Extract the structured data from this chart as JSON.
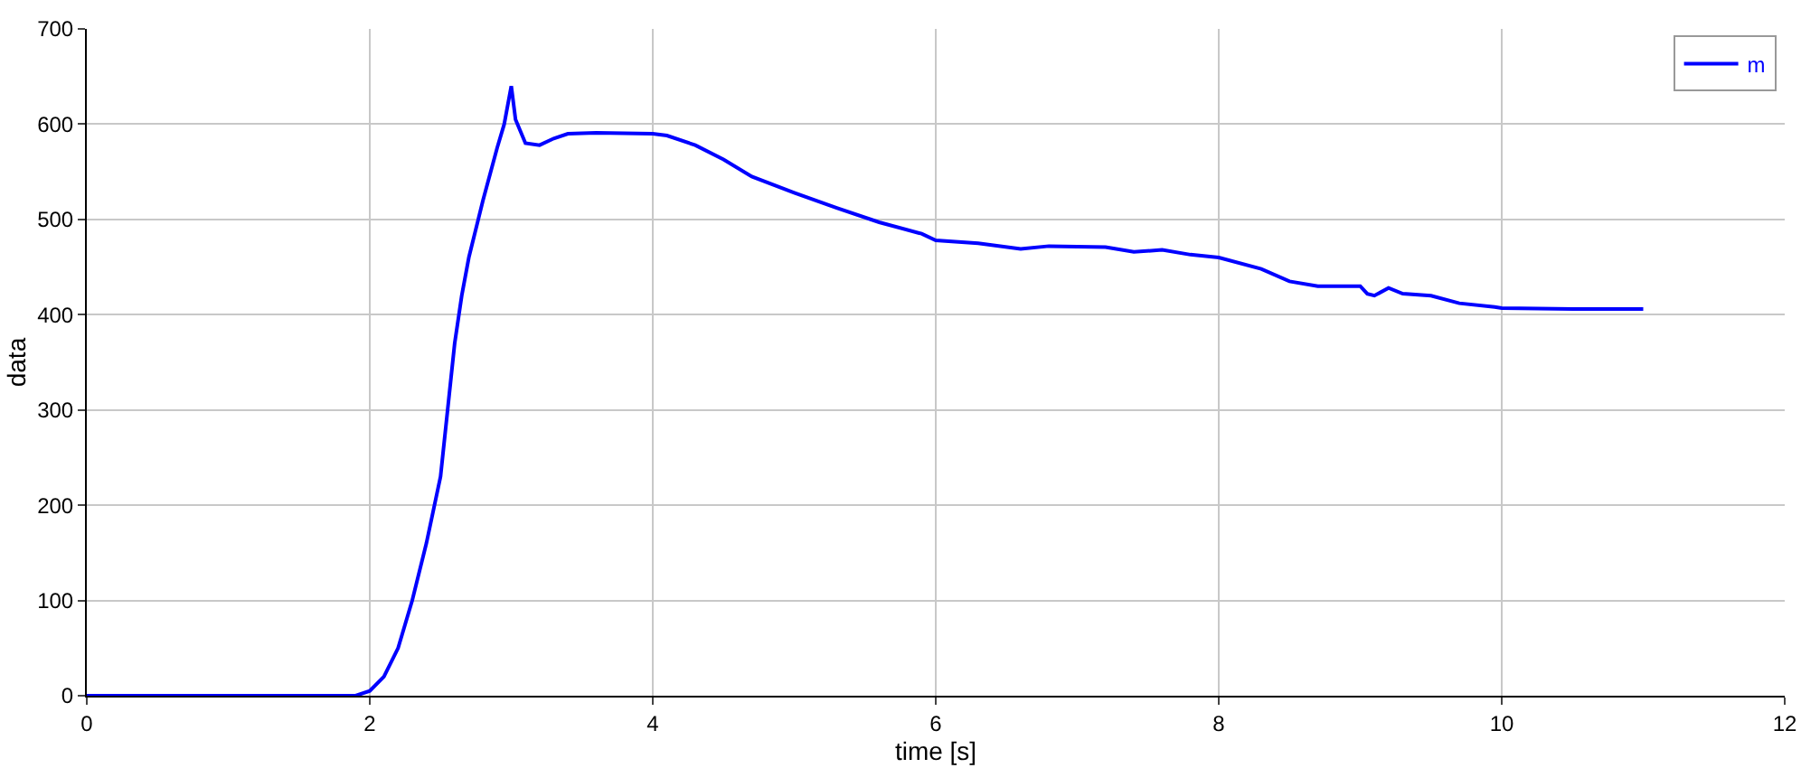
{
  "chart_data": {
    "type": "line",
    "xlabel": "time [s]",
    "ylabel": "data",
    "xlim": [
      0,
      12
    ],
    "xticks": [
      0,
      2,
      4,
      6,
      8,
      10,
      12
    ],
    "ylim": [
      0,
      700
    ],
    "yticks": [
      0,
      100,
      200,
      300,
      400,
      500,
      600,
      700
    ],
    "grid": true,
    "legend": "top right",
    "series": [
      {
        "name": "m",
        "color": "#0000ff",
        "x": [
          0,
          1.9,
          2.0,
          2.1,
          2.2,
          2.3,
          2.4,
          2.5,
          2.55,
          2.6,
          2.65,
          2.7,
          2.8,
          2.9,
          2.95,
          3.0,
          3.03,
          3.1,
          3.2,
          3.3,
          3.4,
          3.6,
          4.0,
          4.1,
          4.3,
          4.5,
          4.7,
          5.0,
          5.3,
          5.6,
          5.9,
          6.0,
          6.3,
          6.6,
          6.8,
          7.2,
          7.4,
          7.6,
          7.8,
          8.0,
          8.3,
          8.5,
          8.7,
          9.0,
          9.05,
          9.1,
          9.2,
          9.3,
          9.5,
          9.7,
          9.95,
          10.0,
          10.5,
          11.0
        ],
        "values": [
          0,
          0,
          5,
          20,
          50,
          100,
          160,
          230,
          300,
          370,
          420,
          460,
          520,
          575,
          600,
          640,
          605,
          580,
          578,
          585,
          590,
          591,
          590,
          588,
          578,
          563,
          545,
          528,
          512,
          497,
          485,
          478,
          475,
          469,
          472,
          471,
          466,
          468,
          463,
          460,
          448,
          435,
          430,
          430,
          422,
          420,
          428,
          422,
          420,
          412,
          408,
          407,
          406,
          406
        ]
      }
    ]
  }
}
